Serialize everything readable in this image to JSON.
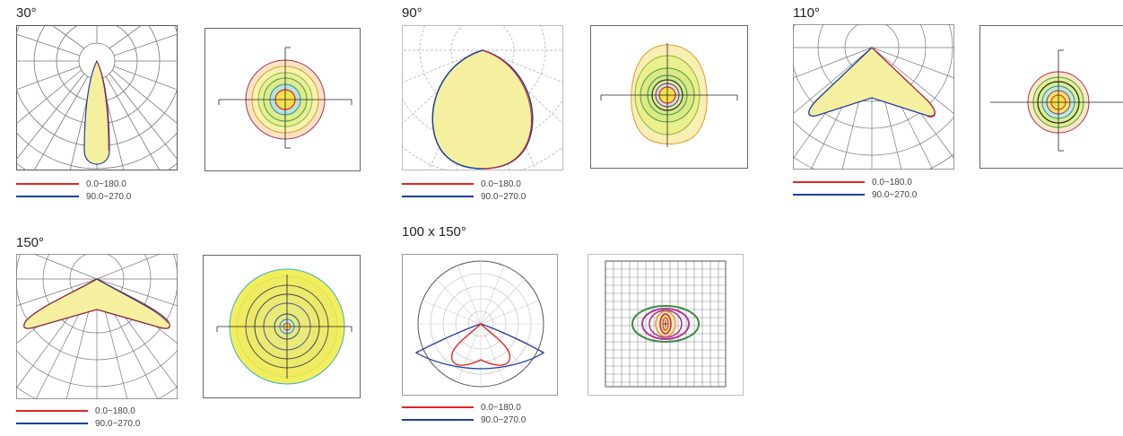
{
  "colors": {
    "red": "#e02424",
    "blue": "#1f3f99",
    "fill_yellow": "#f5f0a0",
    "frame_gray": "#888888"
  },
  "legend_labels": {
    "c0": "0.0~180.0",
    "c90": "90.0~270.0"
  },
  "beam_sets": [
    {
      "id": "b30",
      "title": "30°",
      "legend_c0": "0.0~180.0",
      "legend_c90": "90.0~270.0"
    },
    {
      "id": "b90",
      "title": "90°",
      "legend_c0": "0.0~180.0",
      "legend_c90": "90.0~270.0"
    },
    {
      "id": "b110",
      "title": "110°",
      "legend_c0": "0.0~180.0",
      "legend_c90": "90.0~270.0"
    },
    {
      "id": "b150",
      "title": "150°",
      "legend_c0": "0.0~180.0",
      "legend_c90": "90.0~270.0"
    },
    {
      "id": "b100x150",
      "title": "100 x 150°",
      "legend_c0": "0.0~180.0",
      "legend_c90": "90.0~270.0"
    }
  ]
}
